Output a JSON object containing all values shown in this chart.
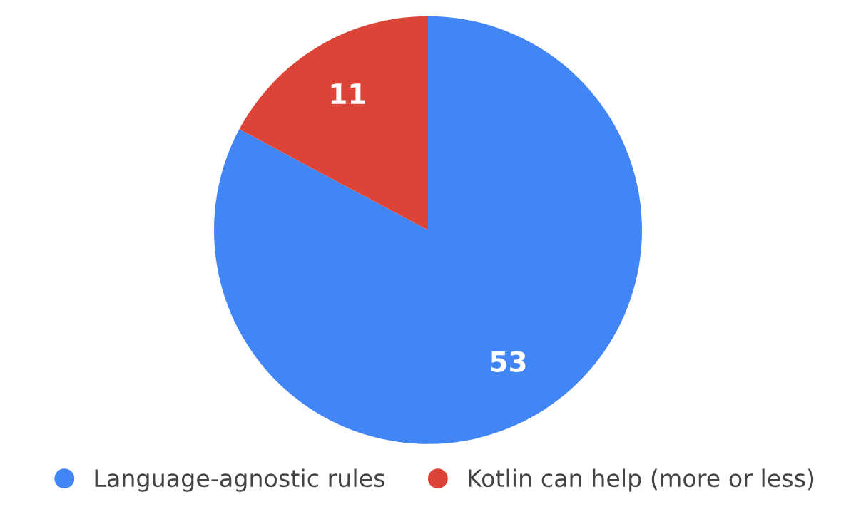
{
  "chart_data": {
    "type": "pie",
    "categories": [
      "Language-agnostic rules",
      "Kotlin can help (more or less)"
    ],
    "values": [
      53,
      11
    ],
    "colors": [
      "#4285f4",
      "#db4437"
    ],
    "data_labels": true,
    "legend": "bottom"
  }
}
